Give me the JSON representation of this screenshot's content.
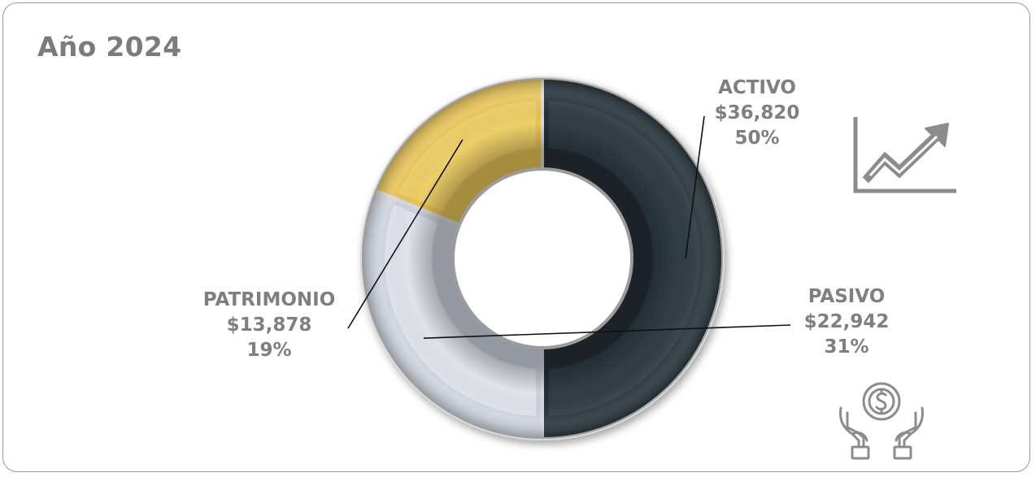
{
  "title": "Año 2024",
  "chart_data": {
    "type": "pie",
    "variant": "donut",
    "title": "Año 2024",
    "start_angle_deg": -90,
    "series": [
      {
        "name": "ACTIVO",
        "value_label": "$36,820",
        "value": 36820,
        "percent": 50,
        "percent_label": "50%",
        "color": "#243038"
      },
      {
        "name": "PASIVO",
        "value_label": "$22,942",
        "value": 22942,
        "percent": 31,
        "percent_label": "31%",
        "color": "#cdd3de"
      },
      {
        "name": "PATRIMONIO",
        "value_label": "$13,878",
        "value": 13878,
        "percent": 19,
        "percent_label": "19%",
        "color": "#e7c356"
      }
    ]
  },
  "icons": {
    "growth": "trend-up-chart-icon",
    "money": "money-in-hands-icon",
    "icon_color": "#8c8c8c"
  }
}
